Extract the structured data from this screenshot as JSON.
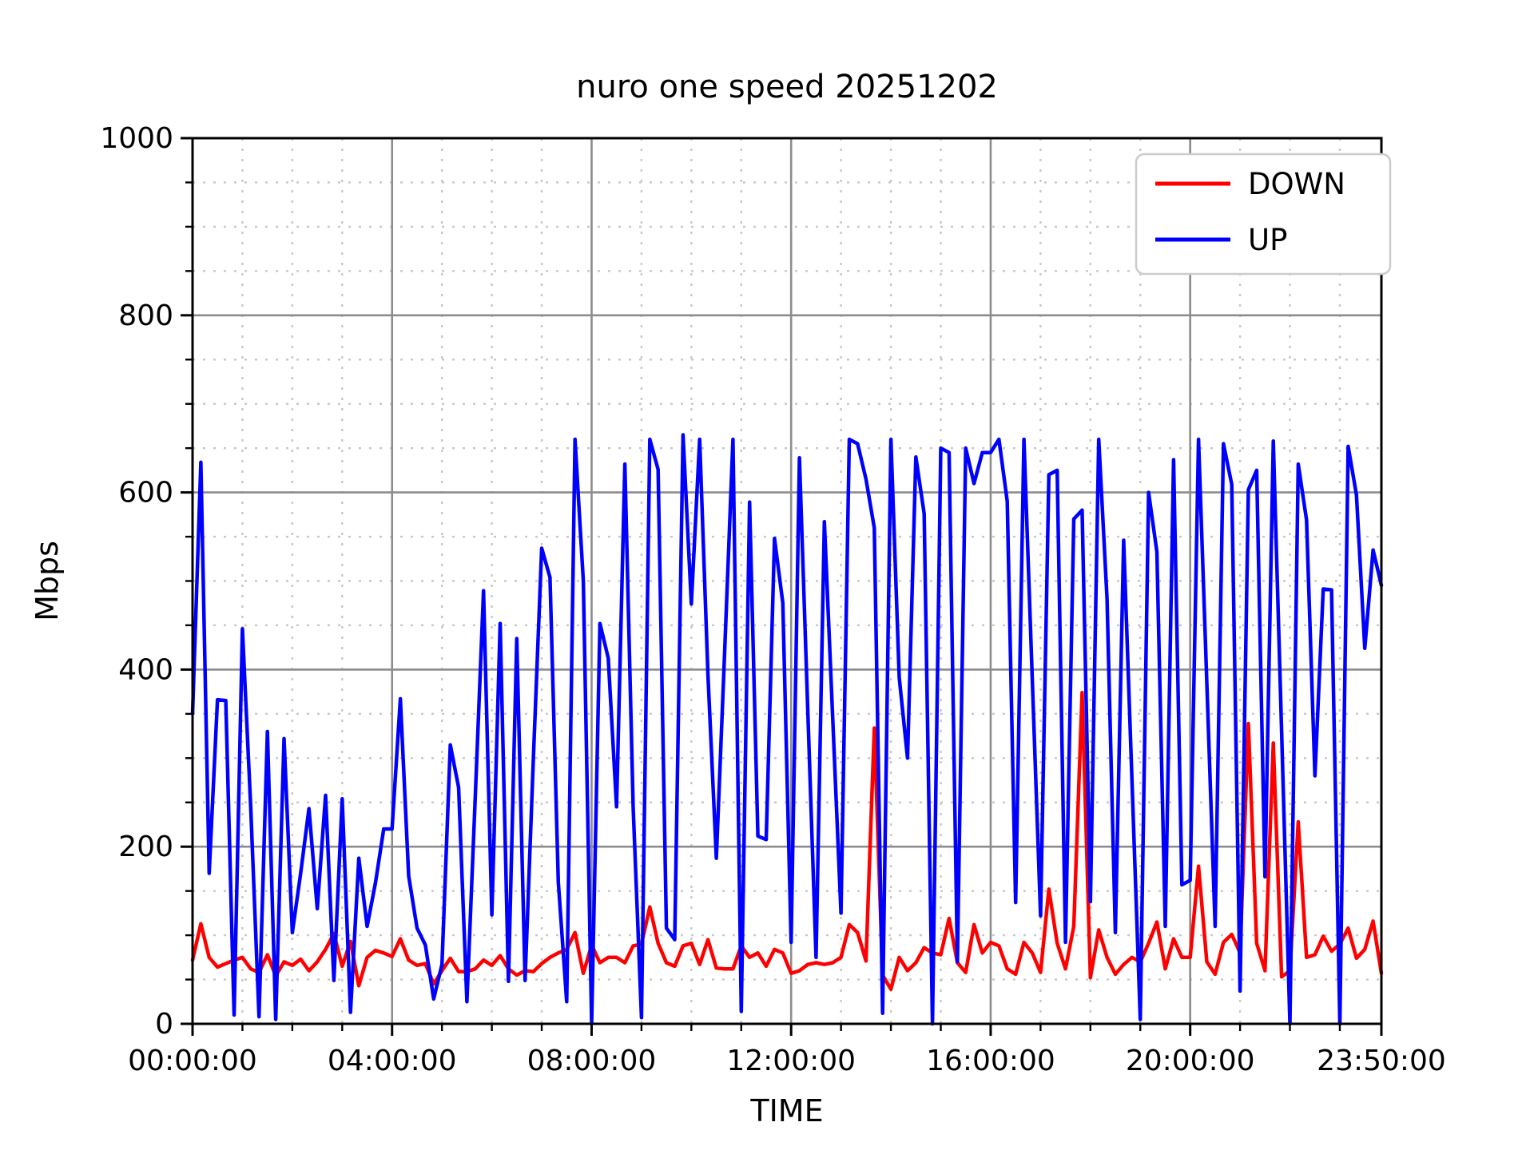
{
  "chart_data": {
    "type": "line",
    "title": "nuro one speed 20251202",
    "xlabel": "TIME",
    "ylabel": "Mbps",
    "ylim": [
      0,
      1000
    ],
    "grid": "on",
    "legend_position": "upper right",
    "y_major_ticks": [
      0,
      200,
      400,
      600,
      800,
      1000
    ],
    "y_minor_step": 50,
    "x_total_minutes": 1430,
    "x_step_minutes": 10,
    "x_minor_step_minutes": 60,
    "x_major_ticks": [
      {
        "minute": 0,
        "label": "00:00:00"
      },
      {
        "minute": 240,
        "label": "04:00:00"
      },
      {
        "minute": 480,
        "label": "08:00:00"
      },
      {
        "minute": 720,
        "label": "12:00:00"
      },
      {
        "minute": 960,
        "label": "16:00:00"
      },
      {
        "minute": 1200,
        "label": "20:00:00"
      },
      {
        "minute": 1430,
        "label": "23:50:00"
      }
    ],
    "colors": {
      "down": "#ff0000",
      "up": "#0000ff",
      "major_grid": "#8c8c8c",
      "minor_grid": "#c8c8c8",
      "axis": "#000000",
      "legend_border": "#cccccc"
    },
    "legend": {
      "entries": [
        {
          "label": "DOWN",
          "color": "#ff0000"
        },
        {
          "label": "UP",
          "color": "#0000ff"
        }
      ]
    },
    "series": [
      {
        "name": "DOWN",
        "color": "#ff0000",
        "values": [
          72,
          113,
          75,
          64,
          68,
          72,
          75,
          62,
          58,
          78,
          54,
          70,
          66,
          73,
          60,
          70,
          84,
          102,
          65,
          93,
          43,
          75,
          83,
          80,
          76,
          96,
          72,
          66,
          68,
          45,
          60,
          74,
          59,
          59,
          62,
          72,
          66,
          77,
          62,
          55,
          60,
          59,
          68,
          75,
          80,
          84,
          103,
          57,
          89,
          69,
          75,
          75,
          69,
          88,
          90,
          132,
          91,
          69,
          65,
          88,
          91,
          67,
          95,
          63,
          62,
          62,
          88,
          75,
          80,
          65,
          84,
          80,
          57,
          60,
          67,
          69,
          67,
          69,
          75,
          112,
          103,
          71,
          334,
          55,
          39,
          75,
          60,
          69,
          86,
          80,
          78,
          119,
          69,
          58,
          112,
          80,
          92,
          88,
          62,
          56,
          92,
          80,
          58,
          152,
          91,
          62,
          110,
          374,
          52,
          106,
          75,
          56,
          67,
          75,
          70,
          91,
          115,
          62,
          96,
          75,
          75,
          178,
          70,
          56,
          92,
          101,
          80,
          339,
          91,
          60,
          317,
          53,
          60,
          228,
          75,
          78,
          99,
          82,
          90,
          108,
          74,
          84,
          116,
          57
        ]
      },
      {
        "name": "UP",
        "color": "#0000ff",
        "values": [
          350,
          634,
          170,
          366,
          365,
          10,
          446,
          245,
          8,
          330,
          5,
          322,
          103,
          170,
          243,
          130,
          258,
          49,
          254,
          13,
          187,
          110,
          159,
          220,
          220,
          367,
          167,
          108,
          89,
          28,
          67,
          315,
          267,
          25,
          255,
          489,
          123,
          452,
          48,
          435,
          49,
          300,
          537,
          504,
          160,
          25,
          660,
          500,
          0,
          452,
          413,
          245,
          632,
          244,
          7,
          660,
          626,
          108,
          95,
          665,
          474,
          660,
          394,
          187,
          420,
          660,
          14,
          589,
          212,
          208,
          548,
          475,
          92,
          639,
          355,
          75,
          567,
          346,
          125,
          660,
          655,
          615,
          560,
          12,
          660,
          391,
          300,
          640,
          576,
          0,
          650,
          645,
          70,
          650,
          610,
          645,
          645,
          660,
          590,
          137,
          660,
          390,
          122,
          620,
          625,
          92,
          570,
          580,
          138,
          660,
          480,
          103,
          546,
          275,
          5,
          600,
          533,
          110,
          637,
          157,
          162,
          660,
          385,
          110,
          655,
          609,
          37,
          603,
          625,
          166,
          658,
          330,
          0,
          632,
          569,
          280,
          491,
          490,
          0,
          652,
          597,
          424,
          535,
          495
        ]
      }
    ]
  }
}
